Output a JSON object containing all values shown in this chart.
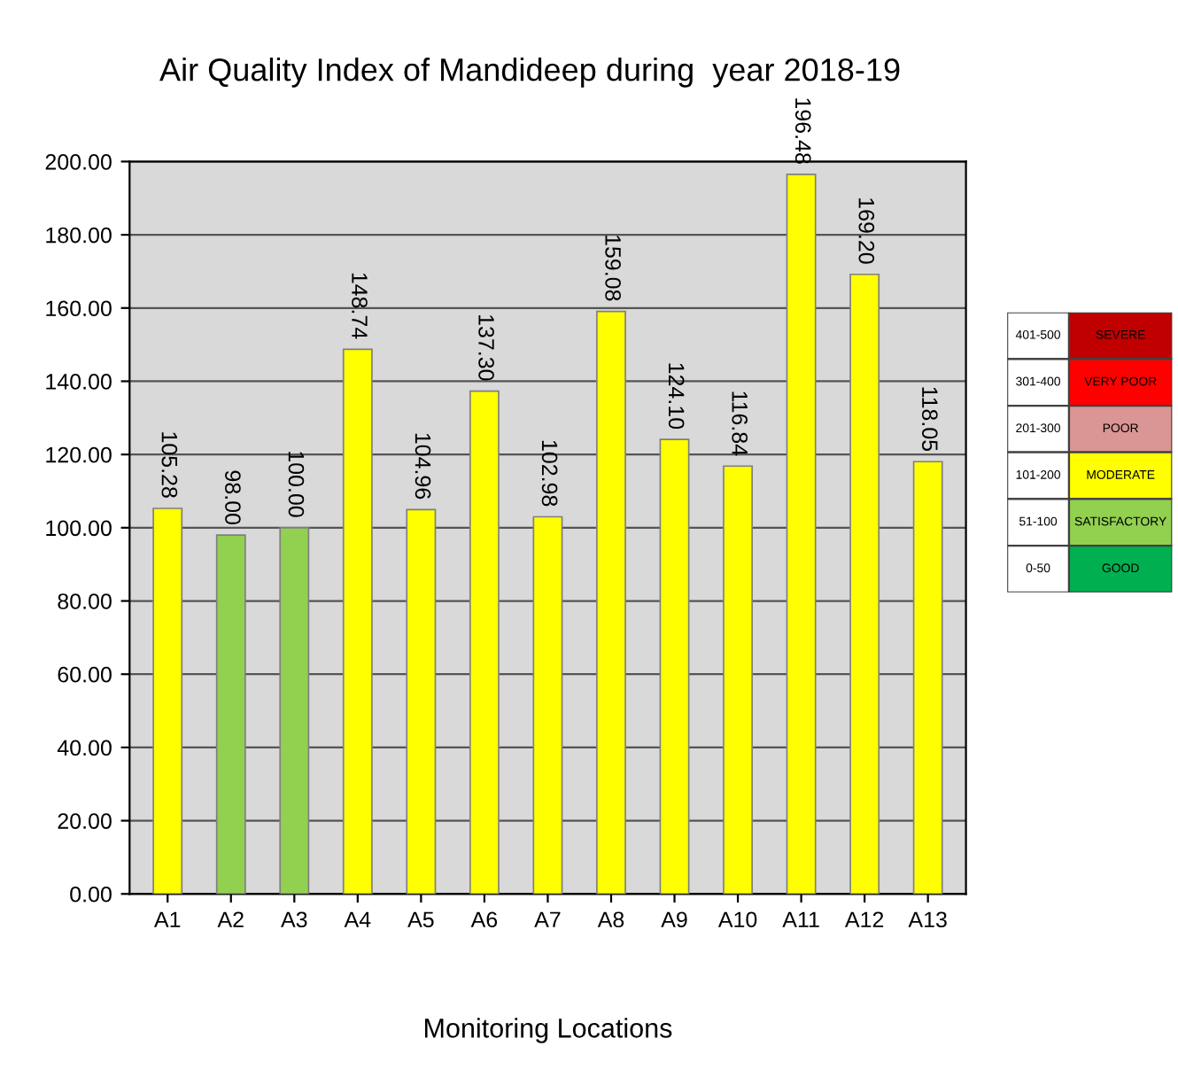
{
  "chart_data": [
    {
      "type": "bar",
      "title": "Air Quality Index of Mandideep during  year 2018-19",
      "xlabel": "Monitoring Locations",
      "categories": [
        "A1",
        "A2",
        "A3",
        "A4",
        "A5",
        "A6",
        "A7",
        "A8",
        "A9",
        "A10",
        "A11",
        "A12",
        "A13"
      ],
      "values": [
        105.28,
        98.0,
        100.0,
        148.74,
        104.96,
        137.3,
        102.98,
        159.08,
        124.1,
        116.84,
        196.48,
        169.2,
        118.05
      ],
      "value_labels": [
        "105.28",
        "98.00",
        "100.00",
        "148.74",
        "104.96",
        "137.30",
        "102.98",
        "159.08",
        "124.10",
        "116.84",
        "196.48",
        "169.20",
        "118.05"
      ],
      "colors": [
        "#ffff00",
        "#92d050",
        "#92d050",
        "#ffff00",
        "#ffff00",
        "#ffff00",
        "#ffff00",
        "#ffff00",
        "#ffff00",
        "#ffff00",
        "#ffff00",
        "#ffff00",
        "#ffff00"
      ],
      "ylim": [
        0,
        200
      ],
      "yticks": [
        {
          "value": 0,
          "label": "0.00"
        },
        {
          "value": 20,
          "label": "20.00"
        },
        {
          "value": 40,
          "label": "40.00"
        },
        {
          "value": 60,
          "label": "60.00"
        },
        {
          "value": 80,
          "label": "80.00"
        },
        {
          "value": 100,
          "label": "100.00"
        },
        {
          "value": 120,
          "label": "120.00"
        },
        {
          "value": 140,
          "label": "140.00"
        },
        {
          "value": 160,
          "label": "160.00"
        },
        {
          "value": 180,
          "label": "180.00"
        },
        {
          "value": 200,
          "label": "200.00"
        }
      ],
      "grid": "y"
    },
    {
      "type": "other",
      "categories": [
        "SEVERE",
        "VERY POOR",
        "POOR",
        "MODERATE",
        "SATISFACTORY",
        "GOOD"
      ],
      "annotations": [
        "401-500",
        "301-400",
        "201-300",
        "101-200",
        "51-100",
        "0-50"
      ],
      "colors": [
        "#c00000",
        "#ff0000",
        "#da9694",
        "#ffff00",
        "#92d050",
        "#00b050"
      ]
    }
  ]
}
